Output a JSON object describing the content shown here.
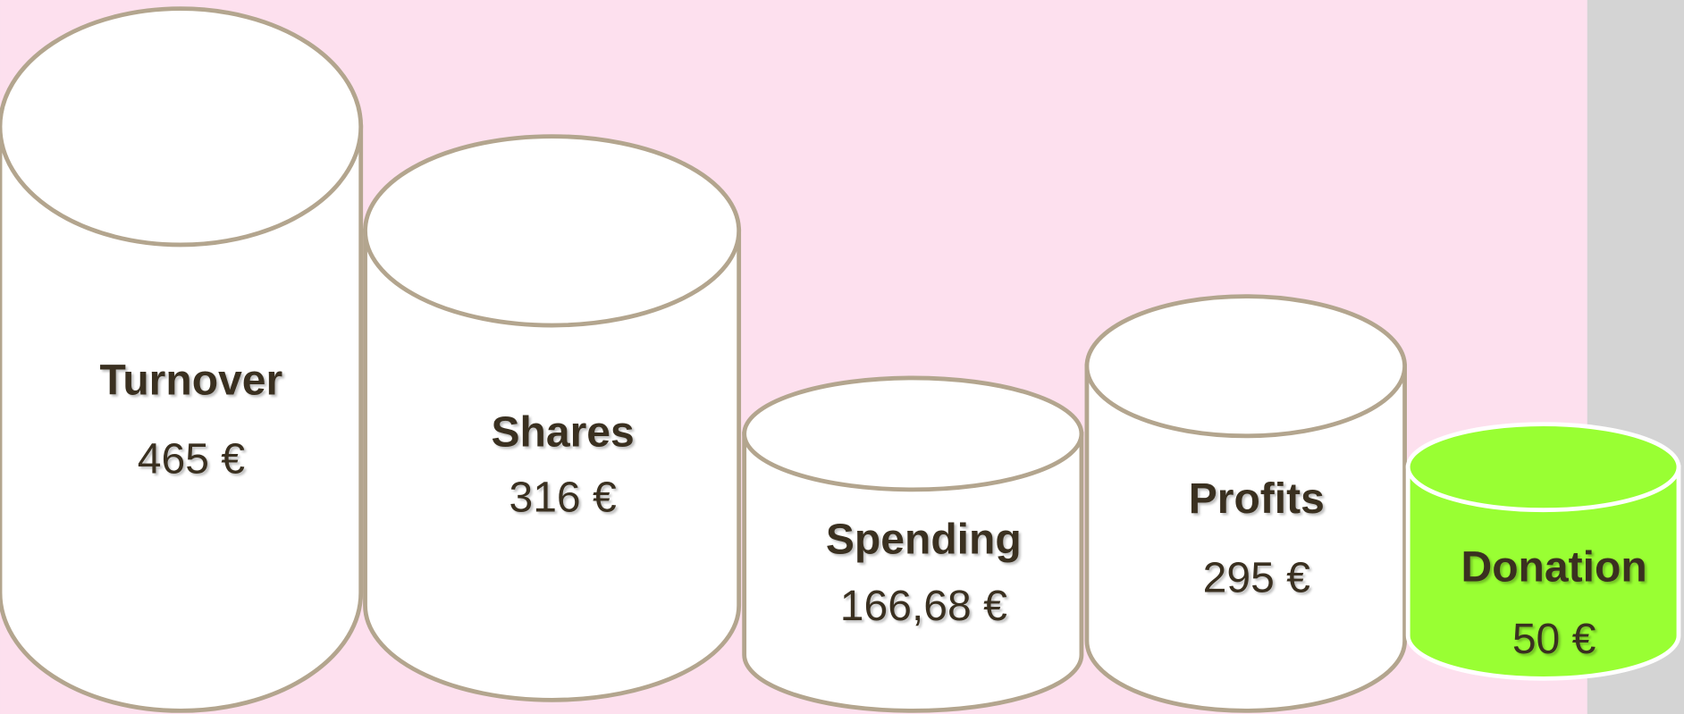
{
  "nodes": [
    {
      "label": "Turnover",
      "value": "465 €"
    },
    {
      "label": "Shares",
      "value": "316 €"
    },
    {
      "label": "Spending",
      "value": "166,68 €"
    },
    {
      "label": "Profits",
      "value": "295 €"
    },
    {
      "label": "Donation",
      "value": "50 €"
    }
  ]
}
